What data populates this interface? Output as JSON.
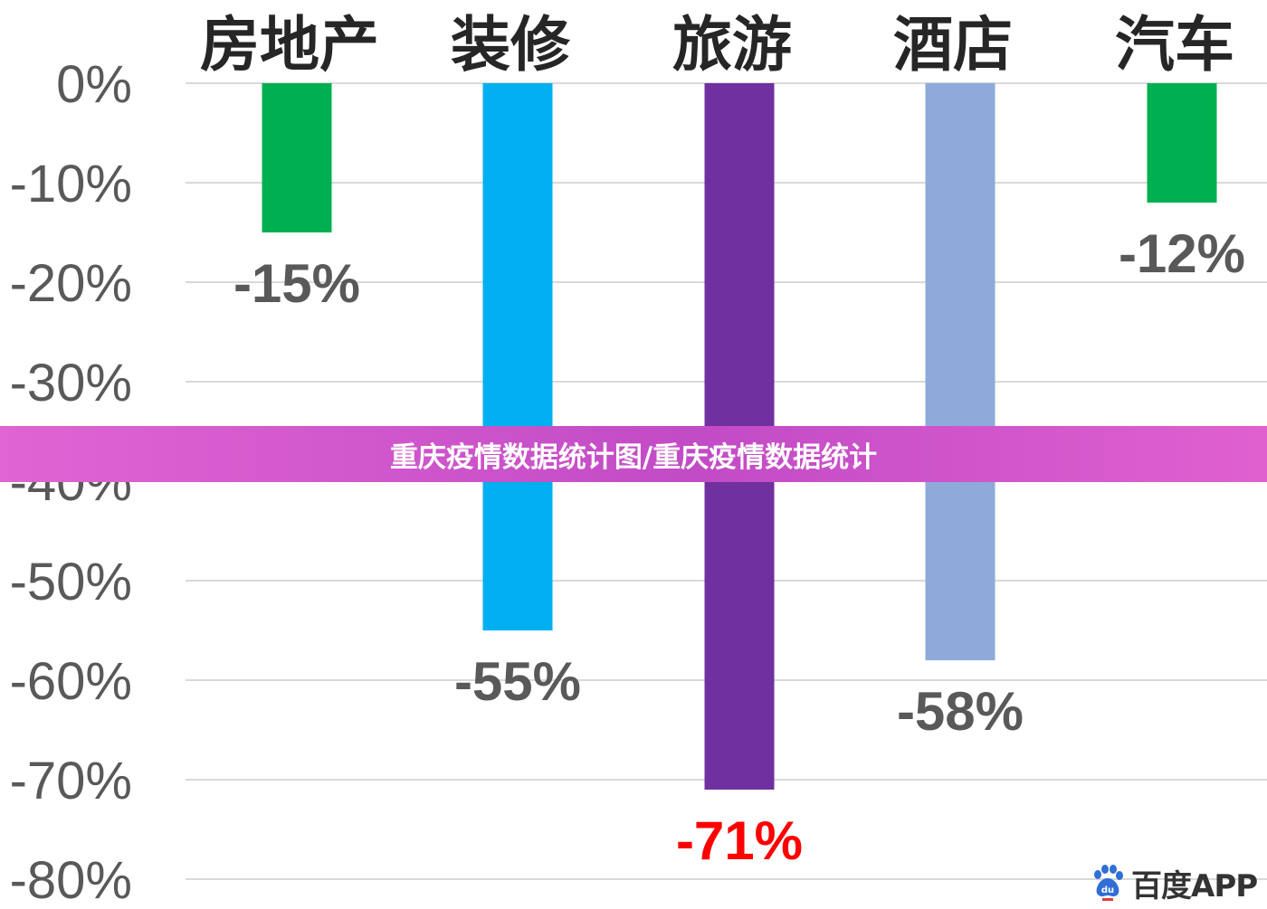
{
  "chart_data": {
    "type": "bar",
    "categories": [
      "房地产",
      "装修",
      "旅游",
      "酒店",
      "汽车"
    ],
    "values": [
      -15,
      -55,
      -71,
      -58,
      -12
    ],
    "value_labels": [
      "-15%",
      "-55%",
      "-71%",
      "-58%",
      "-12%"
    ],
    "bar_colors": [
      "#00b050",
      "#00b0f0",
      "#7030a0",
      "#8eaadb",
      "#00b050"
    ],
    "label_colors": [
      "#595959",
      "#595959",
      "#ff0000",
      "#595959",
      "#595959"
    ],
    "yticks": [
      "0%",
      "-10%",
      "-20%",
      "-30%",
      "-40%",
      "-50%",
      "-60%",
      "-70%",
      "-80%"
    ],
    "ylim": [
      -80,
      0
    ],
    "grid": true,
    "title": "",
    "xlabel": "",
    "ylabel": ""
  },
  "banner": {
    "text": "重庆疫情数据统计图/重庆疫情数据统计"
  },
  "watermark": {
    "text": "百度APP",
    "icon": "baidu-paw-icon"
  }
}
